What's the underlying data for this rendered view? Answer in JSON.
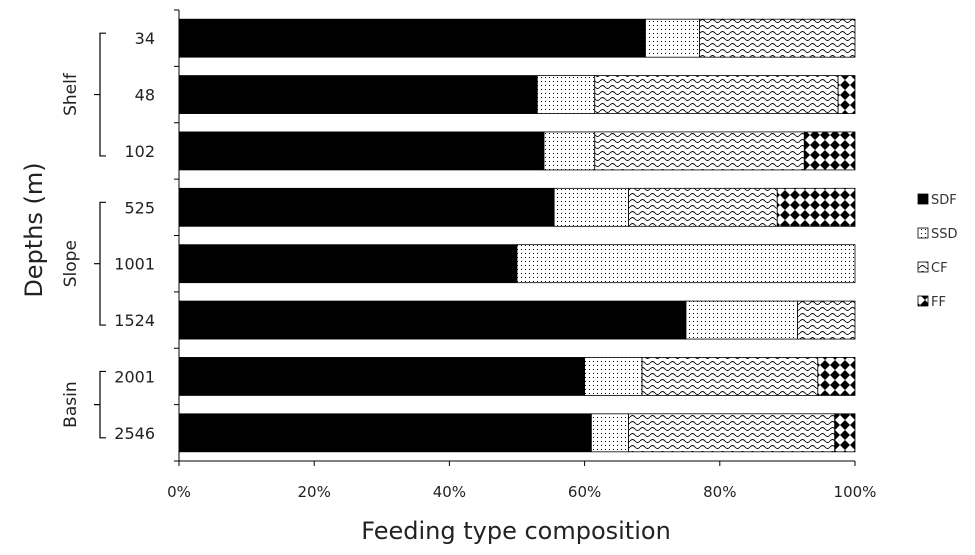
{
  "chart_data": {
    "type": "bar",
    "orientation": "horizontal",
    "stacked": "percent",
    "xlabel": "Feeding type composition",
    "ylabel": "Depths (m)",
    "xlim": [
      0,
      100
    ],
    "x_ticks": [
      "0%",
      "20%",
      "40%",
      "60%",
      "80%",
      "100%"
    ],
    "categories": [
      "34",
      "48",
      "102",
      "525",
      "1001",
      "1524",
      "2001",
      "2546"
    ],
    "groups": [
      {
        "label": "Shelf",
        "categories": [
          "34",
          "48",
          "102"
        ]
      },
      {
        "label": "Slope",
        "categories": [
          "525",
          "1001",
          "1524"
        ]
      },
      {
        "label": "Basin",
        "categories": [
          "2001",
          "2546"
        ]
      }
    ],
    "series": [
      {
        "name": "SDF",
        "pattern": "solid",
        "values": [
          69,
          53,
          54,
          55.5,
          50,
          75,
          60,
          61
        ]
      },
      {
        "name": "SSD",
        "pattern": "dots",
        "values": [
          8,
          8.5,
          7.5,
          11,
          50,
          16.5,
          8.5,
          5.5
        ]
      },
      {
        "name": "CF",
        "pattern": "waves",
        "values": [
          23,
          36,
          31,
          22,
          0,
          8.5,
          26,
          30.5
        ]
      },
      {
        "name": "FF",
        "pattern": "diamonds",
        "values": [
          0,
          2.5,
          7.5,
          11.5,
          0,
          0,
          5.5,
          3
        ]
      }
    ],
    "legend_position": "right",
    "grid": false
  },
  "colors": {
    "bar_fill": "#000000",
    "background": "#ffffff",
    "stroke": "#000000"
  }
}
